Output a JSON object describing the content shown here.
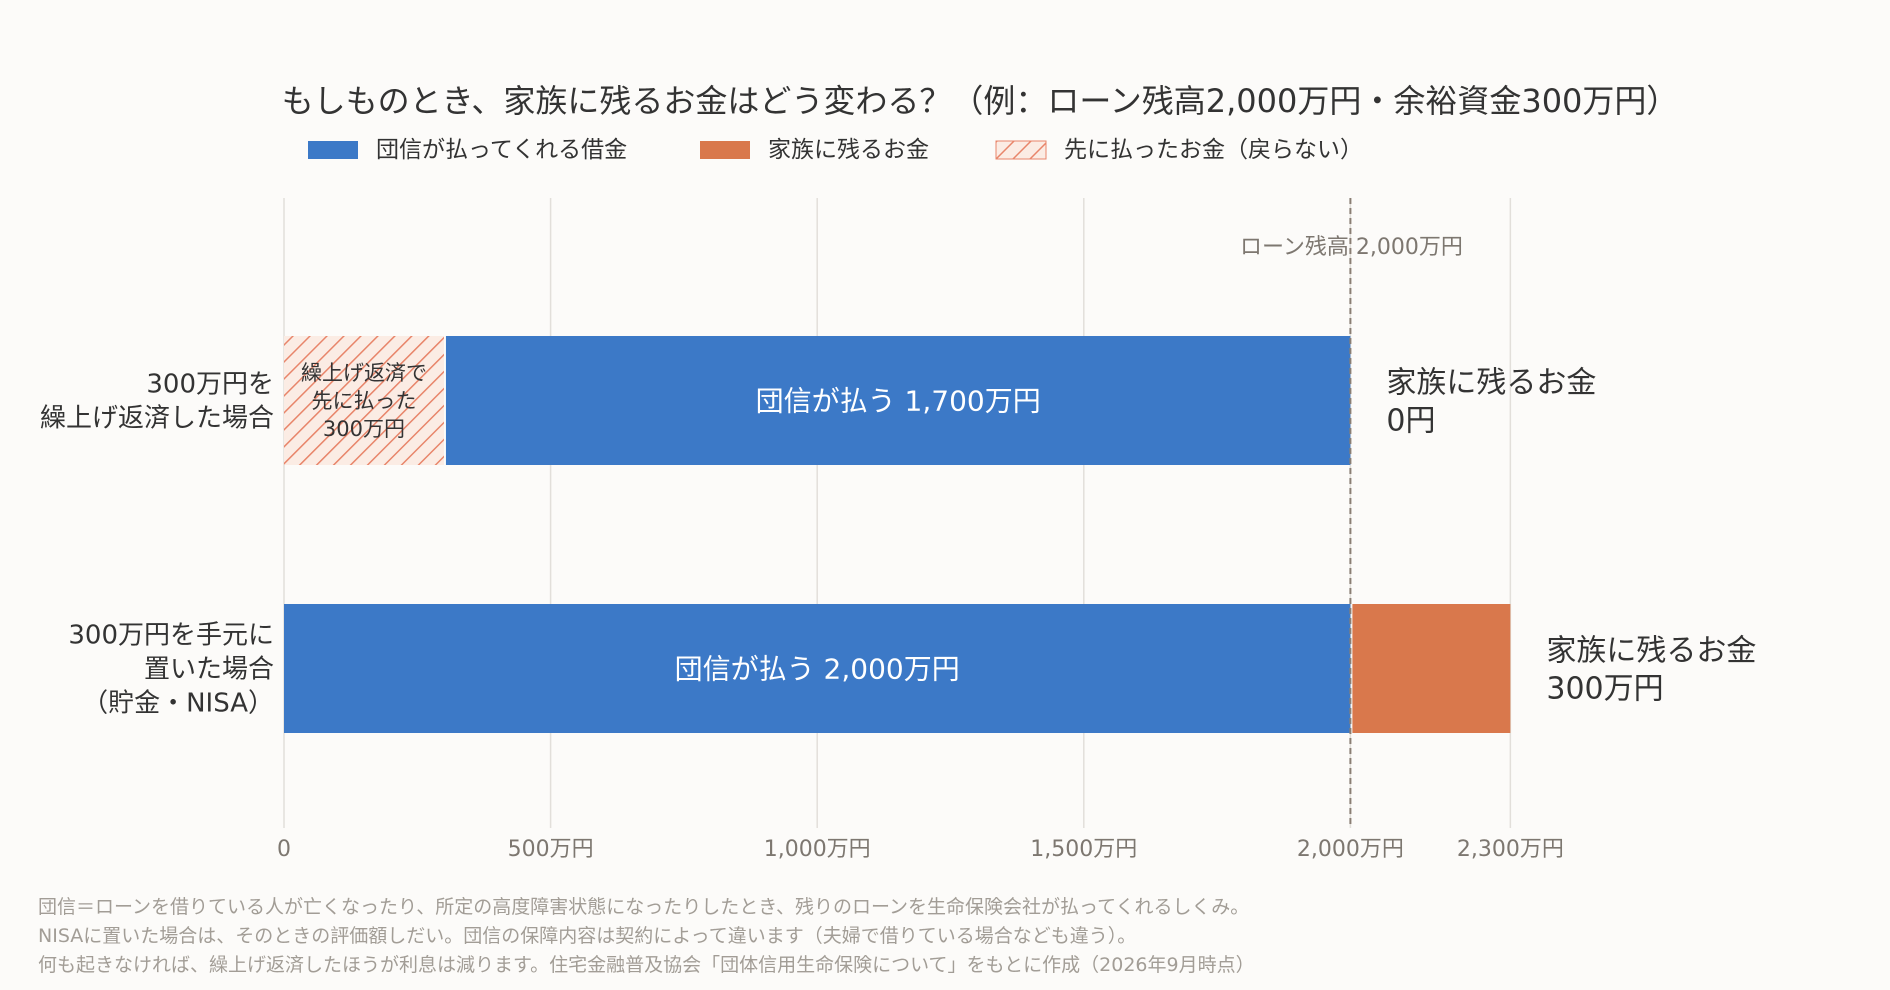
{
  "chart_data": {
    "type": "bar",
    "orientation": "horizontal",
    "stacked": true,
    "title": "もしものとき、家族に残るお金はどう変わる？（例：ローン残高2,000万円・余裕資金300万円）",
    "legend": {
      "placement": "top",
      "items": [
        {
          "label": "団信が払ってくれる借金",
          "color": "#3c79c7",
          "pattern": "solid"
        },
        {
          "label": "家族に残るお金",
          "color": "#d9784c",
          "pattern": "solid"
        },
        {
          "label": "先に払ったお金（戻らない）",
          "color": "#d9784c",
          "pattern": "hatched"
        }
      ]
    },
    "xlim": [
      0,
      2300
    ],
    "x_unit": "万円",
    "x_ticks": [
      {
        "value": 0,
        "label": "0"
      },
      {
        "value": 500,
        "label": "500万円"
      },
      {
        "value": 1000,
        "label": "1,000万円"
      },
      {
        "value": 1500,
        "label": "1,500万円"
      },
      {
        "value": 2000,
        "label": "2,000万円"
      },
      {
        "value": 2300,
        "label": "2,300万円"
      }
    ],
    "grid": true,
    "reference_line": {
      "value": 2000,
      "label": "ローン残高 2,000万円",
      "style": "dashed"
    },
    "categories": [
      [
        "300万円を",
        "繰上げ返済した場合"
      ],
      [
        "300万円を手元に",
        "置いた場合",
        "（貯金・NISA）"
      ]
    ],
    "rows": [
      {
        "segments": [
          {
            "legend_index": 2,
            "start": 0,
            "end": 300,
            "label": [
              "繰上げ返済で",
              "先に払った",
              "300万円"
            ]
          },
          {
            "legend_index": 0,
            "start": 300,
            "end": 2000,
            "label": [
              "団信が払う 1,700万円"
            ]
          }
        ],
        "outside_label": [
          "家族に残るお金",
          "0円"
        ]
      },
      {
        "segments": [
          {
            "legend_index": 0,
            "start": 0,
            "end": 2000,
            "label": [
              "団信が払う 2,000万円"
            ]
          },
          {
            "legend_index": 1,
            "start": 2000,
            "end": 2300,
            "label": []
          }
        ],
        "outside_label": [
          "家族に残るお金",
          "300万円"
        ]
      }
    ]
  },
  "footnotes": [
    "団信＝ローンを借りている人が亡くなったり、所定の高度障害状態になったりしたとき、残りのローンを生命保険会社が払ってくれるしくみ。",
    "NISAに置いた場合は、そのときの評価額しだい。団信の保障内容は契約によって違います（夫婦で借りている場合なども違う）。",
    "何も起きなければ、繰上げ返済したほうが利息は減ります。住宅金融普及協会「団体信用生命保険について」をもとに作成（2026年9月時点）"
  ],
  "colors": {
    "blue": "#3c79c7",
    "orange": "#d9784c",
    "hatch_line": "#e8856a",
    "hatch_bg": "#fbece4",
    "grid": "#e2dfda",
    "ref_line": "#8a7e74",
    "tick_text": "#7d7770",
    "muted_text": "#a29d96"
  }
}
